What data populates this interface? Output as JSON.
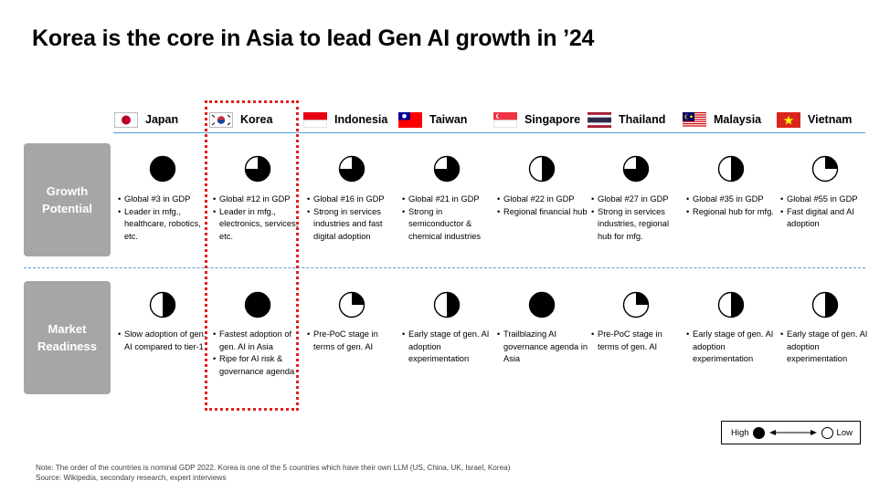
{
  "title": "Korea is the core in Asia to lead Gen AI growth in ’24",
  "rows": {
    "growth": "Growth\nPotential",
    "market": "Market\nReadiness"
  },
  "countries": [
    {
      "name": "Japan",
      "flag": "japan-flag-icon",
      "growth_level": 4,
      "market_level": 2,
      "growth": [
        "Global #3 in GDP",
        "Leader in mfg., healthcare, robotics, etc."
      ],
      "market": [
        "Slow adoption of gen. AI compared to tier-1"
      ]
    },
    {
      "name": "Korea",
      "flag": "korea-flag-icon",
      "growth_level": 3,
      "market_level": 4,
      "growth": [
        "Global #12 in GDP",
        "Leader in mfg., electronics, services, etc."
      ],
      "market": [
        "Fastest adoption of gen. AI in Asia",
        "Ripe for AI risk & governance agenda"
      ]
    },
    {
      "name": "Indonesia",
      "flag": "indonesia-flag-icon",
      "growth_level": 3,
      "market_level": 1,
      "growth": [
        "Global #16 in GDP",
        "Strong in services industries and fast digital adoption"
      ],
      "market": [
        "Pre-PoC stage in terms of gen. AI"
      ]
    },
    {
      "name": "Taiwan",
      "flag": "taiwan-flag-icon",
      "growth_level": 3,
      "market_level": 2,
      "growth": [
        "Global #21 in GDP",
        "Strong in semiconductor & chemical industries"
      ],
      "market": [
        "Early stage of gen. AI adoption experimentation"
      ]
    },
    {
      "name": "Singapore",
      "flag": "singapore-flag-icon",
      "growth_level": 2,
      "market_level": 4,
      "growth": [
        "Global #22 in GDP",
        "Regional financial hub"
      ],
      "market": [
        "Trailblazing AI governance agenda in Asia"
      ]
    },
    {
      "name": "Thailand",
      "flag": "thailand-flag-icon",
      "growth_level": 3,
      "market_level": 1,
      "growth": [
        "Global #27 in GDP",
        "Strong in services industries, regional hub for mfg."
      ],
      "market": [
        "Pre-PoC stage in terms of gen. AI"
      ]
    },
    {
      "name": "Malaysia",
      "flag": "malaysia-flag-icon",
      "growth_level": 2,
      "market_level": 2,
      "growth": [
        "Global #35 in GDP",
        "Regional hub for mfg."
      ],
      "market": [
        "Early stage of gen. AI adoption experimentation"
      ]
    },
    {
      "name": "Vietnam",
      "flag": "vietnam-flag-icon",
      "growth_level": 1,
      "market_level": 2,
      "growth": [
        "Global #55 in GDP",
        "Fast digital and AI adoption"
      ],
      "market": [
        "Early stage of gen. AI adoption experimentation"
      ]
    }
  ],
  "legend": {
    "high": "High",
    "low": "Low"
  },
  "note": "Note: The order of the countries  is nominal GDP 2022.  Korea is one of the 5 countries which have their own LLM (US, China, UK, Israel, Korea)",
  "source": "Source: Wikipedia, secondary research, expert interviews",
  "colors": {
    "accent_line": "#5b9bd5",
    "highlight": "#e02020",
    "label_box": "#a6a6a6"
  }
}
